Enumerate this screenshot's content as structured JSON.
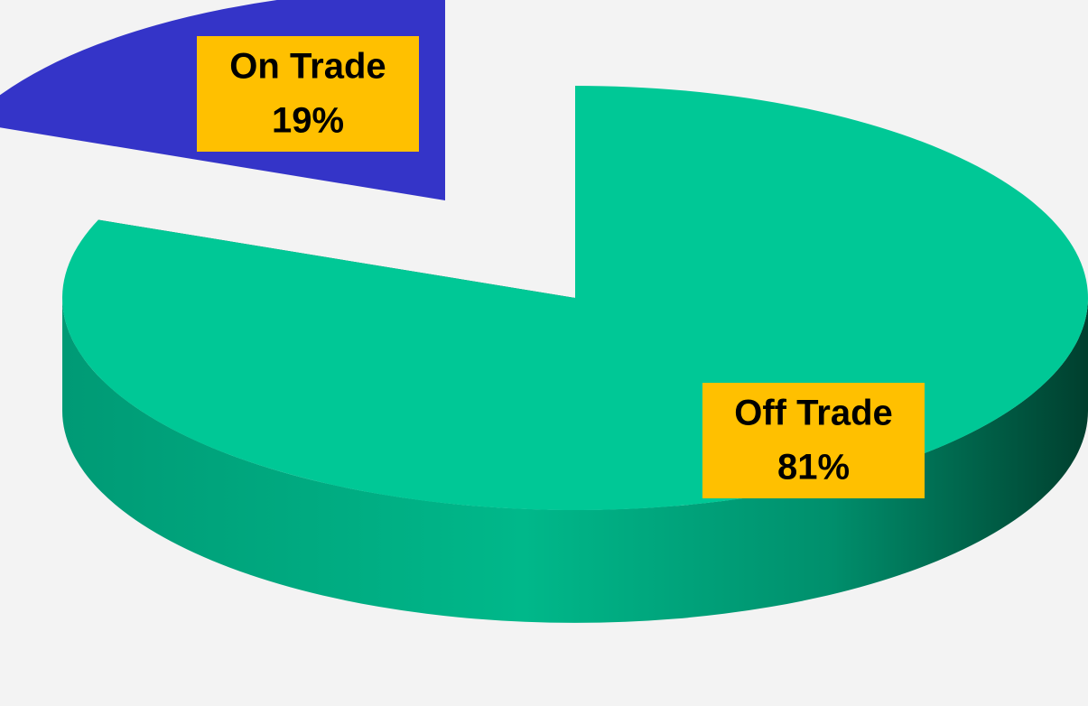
{
  "chart_data": {
    "type": "pie3d",
    "categories": [
      "On Trade",
      "Off Trade"
    ],
    "values": [
      19,
      81
    ],
    "value_labels": [
      "19%",
      "81%"
    ],
    "colors": [
      "#3434c8",
      "#00c896"
    ]
  }
}
